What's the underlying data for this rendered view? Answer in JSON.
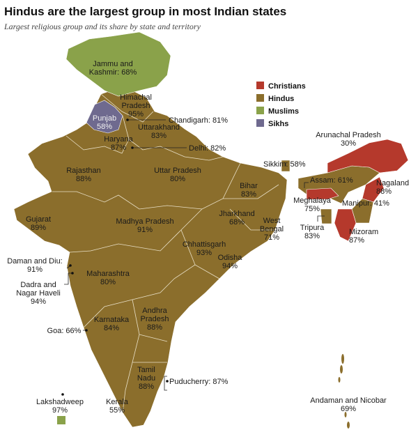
{
  "title": "Hindus are the largest group in most Indian states",
  "subtitle": "Largest religious group and its share by state and territory",
  "legend": [
    {
      "name": "Christians",
      "color": "#b5392c"
    },
    {
      "name": "Hindus",
      "color": "#8b6e2c"
    },
    {
      "name": "Muslims",
      "color": "#8aa24a"
    },
    {
      "name": "Sikhs",
      "color": "#6f6a8f"
    }
  ],
  "regions": [
    {
      "lines": [
        "Jammu and",
        "Kashmir: 68%"
      ]
    },
    {
      "lines": [
        "Himachal",
        "Pradesh",
        "95%"
      ]
    },
    {
      "lines": [
        "Punjab",
        "58%"
      ]
    },
    {
      "lines": [
        "Chandigarh: 81%"
      ]
    },
    {
      "lines": [
        "Uttarakhand",
        "83%"
      ]
    },
    {
      "lines": [
        "Haryana",
        "87%"
      ]
    },
    {
      "lines": [
        "Delhi: 82%"
      ]
    },
    {
      "lines": [
        "Rajasthan",
        "88%"
      ]
    },
    {
      "lines": [
        "Uttar Pradesh",
        "80%"
      ]
    },
    {
      "lines": [
        "Sikkim: 58%"
      ]
    },
    {
      "lines": [
        "Arunachal Pradesh",
        "30%"
      ]
    },
    {
      "lines": [
        "Assam: 61%"
      ]
    },
    {
      "lines": [
        "Bihar",
        "83%"
      ]
    },
    {
      "lines": [
        "Nagaland",
        "88%"
      ]
    },
    {
      "lines": [
        "Meghalaya",
        "75%"
      ]
    },
    {
      "lines": [
        "Manipur: 41%"
      ]
    },
    {
      "lines": [
        "Gujarat",
        "89%"
      ]
    },
    {
      "lines": [
        "Madhya Pradesh",
        "91%"
      ]
    },
    {
      "lines": [
        "Jharkhand",
        "68%"
      ]
    },
    {
      "lines": [
        "West",
        "Bengal",
        "71%"
      ]
    },
    {
      "lines": [
        "Tripura",
        "83%"
      ]
    },
    {
      "lines": [
        "Mizoram",
        "87%"
      ]
    },
    {
      "lines": [
        "Chhattisgarh",
        "93%"
      ]
    },
    {
      "lines": [
        "Odisha",
        "94%"
      ]
    },
    {
      "lines": [
        "Daman and Diu:",
        "91%"
      ]
    },
    {
      "lines": [
        "Maharashtra",
        "80%"
      ]
    },
    {
      "lines": [
        "Dadra and",
        "Nagar Haveli",
        "94%"
      ]
    },
    {
      "lines": [
        "Andhra",
        "Pradesh",
        "88%"
      ]
    },
    {
      "lines": [
        "Karnataka",
        "84%"
      ]
    },
    {
      "lines": [
        "Goa: 66%"
      ]
    },
    {
      "lines": [
        "Puducherry: 87%"
      ]
    },
    {
      "lines": [
        "Tamil",
        "Nadu",
        "88%"
      ]
    },
    {
      "lines": [
        "Kerala",
        "55%"
      ]
    },
    {
      "lines": [
        "Lakshadweep",
        "97%"
      ]
    },
    {
      "lines": [
        "Andaman and Nicobar",
        "69%"
      ]
    }
  ]
}
